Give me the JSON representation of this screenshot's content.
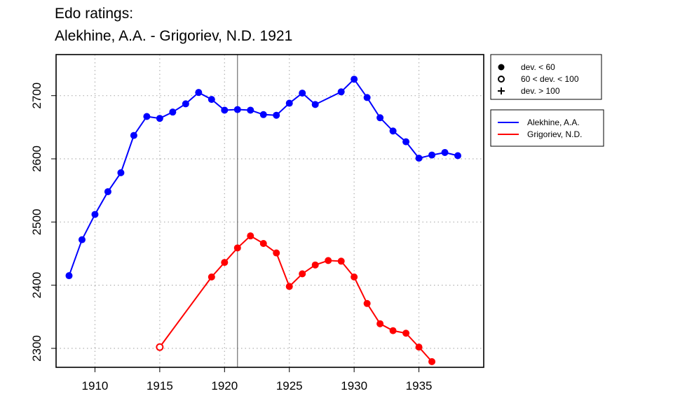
{
  "chart_data": {
    "type": "line",
    "title_lines": [
      "Edo ratings:",
      "Alekhine, A.A. - Grigoriev, N.D. 1921"
    ],
    "xlabel": "",
    "ylabel": "",
    "xlim": [
      1907,
      1940
    ],
    "ylim": [
      2270,
      2765
    ],
    "x_ticks": [
      1910,
      1915,
      1920,
      1925,
      1930,
      1935
    ],
    "y_ticks": [
      2300,
      2400,
      2500,
      2600,
      2700
    ],
    "grid": true,
    "marked_year": 1921,
    "series": [
      {
        "name": "Alekhine, A.A.",
        "color": "#0000ff",
        "points": [
          {
            "x": 1908,
            "y": 2415,
            "dev": "lt60"
          },
          {
            "x": 1909,
            "y": 2472,
            "dev": "lt60"
          },
          {
            "x": 1910,
            "y": 2512,
            "dev": "lt60"
          },
          {
            "x": 1911,
            "y": 2548,
            "dev": "lt60"
          },
          {
            "x": 1912,
            "y": 2578,
            "dev": "lt60"
          },
          {
            "x": 1913,
            "y": 2637,
            "dev": "lt60"
          },
          {
            "x": 1914,
            "y": 2667,
            "dev": "lt60"
          },
          {
            "x": 1915,
            "y": 2664,
            "dev": "lt60"
          },
          {
            "x": 1916,
            "y": 2674,
            "dev": "lt60"
          },
          {
            "x": 1917,
            "y": 2687,
            "dev": "lt60"
          },
          {
            "x": 1918,
            "y": 2705,
            "dev": "lt60"
          },
          {
            "x": 1919,
            "y": 2694,
            "dev": "lt60"
          },
          {
            "x": 1920,
            "y": 2677,
            "dev": "lt60"
          },
          {
            "x": 1921,
            "y": 2678,
            "dev": "lt60"
          },
          {
            "x": 1922,
            "y": 2677,
            "dev": "lt60"
          },
          {
            "x": 1923,
            "y": 2670,
            "dev": "lt60"
          },
          {
            "x": 1924,
            "y": 2669,
            "dev": "lt60"
          },
          {
            "x": 1925,
            "y": 2688,
            "dev": "lt60"
          },
          {
            "x": 1926,
            "y": 2704,
            "dev": "lt60"
          },
          {
            "x": 1927,
            "y": 2686,
            "dev": "lt60"
          },
          {
            "x": 1929,
            "y": 2706,
            "dev": "lt60"
          },
          {
            "x": 1930,
            "y": 2726,
            "dev": "lt60"
          },
          {
            "x": 1931,
            "y": 2697,
            "dev": "lt60"
          },
          {
            "x": 1932,
            "y": 2665,
            "dev": "lt60"
          },
          {
            "x": 1933,
            "y": 2644,
            "dev": "lt60"
          },
          {
            "x": 1934,
            "y": 2627,
            "dev": "lt60"
          },
          {
            "x": 1935,
            "y": 2601,
            "dev": "lt60"
          },
          {
            "x": 1936,
            "y": 2606,
            "dev": "lt60"
          },
          {
            "x": 1937,
            "y": 2610,
            "dev": "lt60"
          },
          {
            "x": 1938,
            "y": 2605,
            "dev": "lt60"
          }
        ]
      },
      {
        "name": "Grigoriev, N.D.",
        "color": "#ff0000",
        "points": [
          {
            "x": 1915,
            "y": 2302,
            "dev": "60to100"
          },
          {
            "x": 1919,
            "y": 2413,
            "dev": "lt60"
          },
          {
            "x": 1920,
            "y": 2436,
            "dev": "lt60"
          },
          {
            "x": 1921,
            "y": 2459,
            "dev": "lt60"
          },
          {
            "x": 1922,
            "y": 2478,
            "dev": "lt60"
          },
          {
            "x": 1923,
            "y": 2466,
            "dev": "lt60"
          },
          {
            "x": 1924,
            "y": 2451,
            "dev": "lt60"
          },
          {
            "x": 1925,
            "y": 2398,
            "dev": "lt60"
          },
          {
            "x": 1926,
            "y": 2418,
            "dev": "lt60"
          },
          {
            "x": 1927,
            "y": 2432,
            "dev": "lt60"
          },
          {
            "x": 1928,
            "y": 2439,
            "dev": "lt60"
          },
          {
            "x": 1929,
            "y": 2438,
            "dev": "lt60"
          },
          {
            "x": 1930,
            "y": 2413,
            "dev": "lt60"
          },
          {
            "x": 1931,
            "y": 2371,
            "dev": "lt60"
          },
          {
            "x": 1932,
            "y": 2339,
            "dev": "lt60"
          },
          {
            "x": 1933,
            "y": 2328,
            "dev": "lt60"
          },
          {
            "x": 1934,
            "y": 2324,
            "dev": "lt60"
          },
          {
            "x": 1935,
            "y": 2302,
            "dev": "lt60"
          },
          {
            "x": 1936,
            "y": 2279,
            "dev": "lt60"
          }
        ]
      }
    ],
    "marker_legend": [
      {
        "symbol": "filled-circle",
        "label": "dev. < 60"
      },
      {
        "symbol": "open-circle",
        "label": "60 < dev. < 100"
      },
      {
        "symbol": "plus",
        "label": "dev. > 100"
      }
    ],
    "legend_placement": "right"
  }
}
